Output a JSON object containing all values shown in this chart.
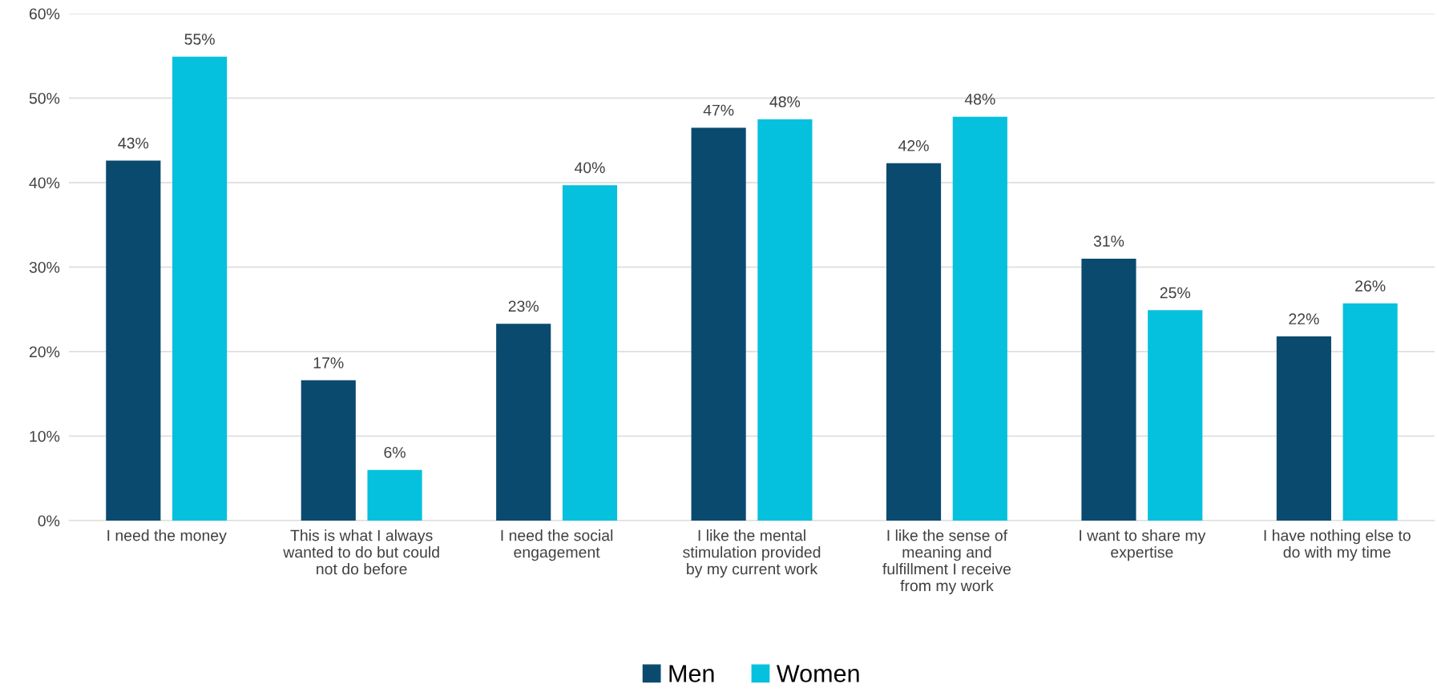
{
  "chart_data": {
    "type": "bar",
    "categories": [
      "I need the money",
      "This is what I always\nwanted to do but could\nnot do before",
      "I need the social\nengagement",
      "I like the mental\nstimulation provided\nby my current work",
      "I like the sense of\nmeaning and\nfulfillment I receive\nfrom my work",
      "I want to share my\nexpertise",
      "I have nothing else to\ndo with my time"
    ],
    "series": [
      {
        "name": "Men",
        "color": "#0b4a6f",
        "values": [
          42.6,
          16.6,
          23.3,
          46.5,
          42.3,
          31.0,
          21.8
        ],
        "value_labels": [
          "43%",
          "17%",
          "23%",
          "47%",
          "42%",
          "31%",
          "22%"
        ]
      },
      {
        "name": "Women",
        "color": "#06c1dd",
        "values": [
          54.9,
          6.0,
          39.7,
          47.5,
          47.8,
          24.9,
          25.7
        ],
        "value_labels": [
          "55%",
          "6%",
          "40%",
          "48%",
          "48%",
          "25%",
          "26%"
        ]
      }
    ],
    "ylim": [
      0,
      60
    ],
    "yticks": [
      {
        "value": 0,
        "label": "0%"
      },
      {
        "value": 10,
        "label": "10%"
      },
      {
        "value": 20,
        "label": "20%"
      },
      {
        "value": 30,
        "label": "30%"
      },
      {
        "value": 40,
        "label": "40%"
      },
      {
        "value": 50,
        "label": "50%"
      },
      {
        "value": 60,
        "label": "60%"
      }
    ],
    "grid": "y",
    "legend": "bottom"
  }
}
